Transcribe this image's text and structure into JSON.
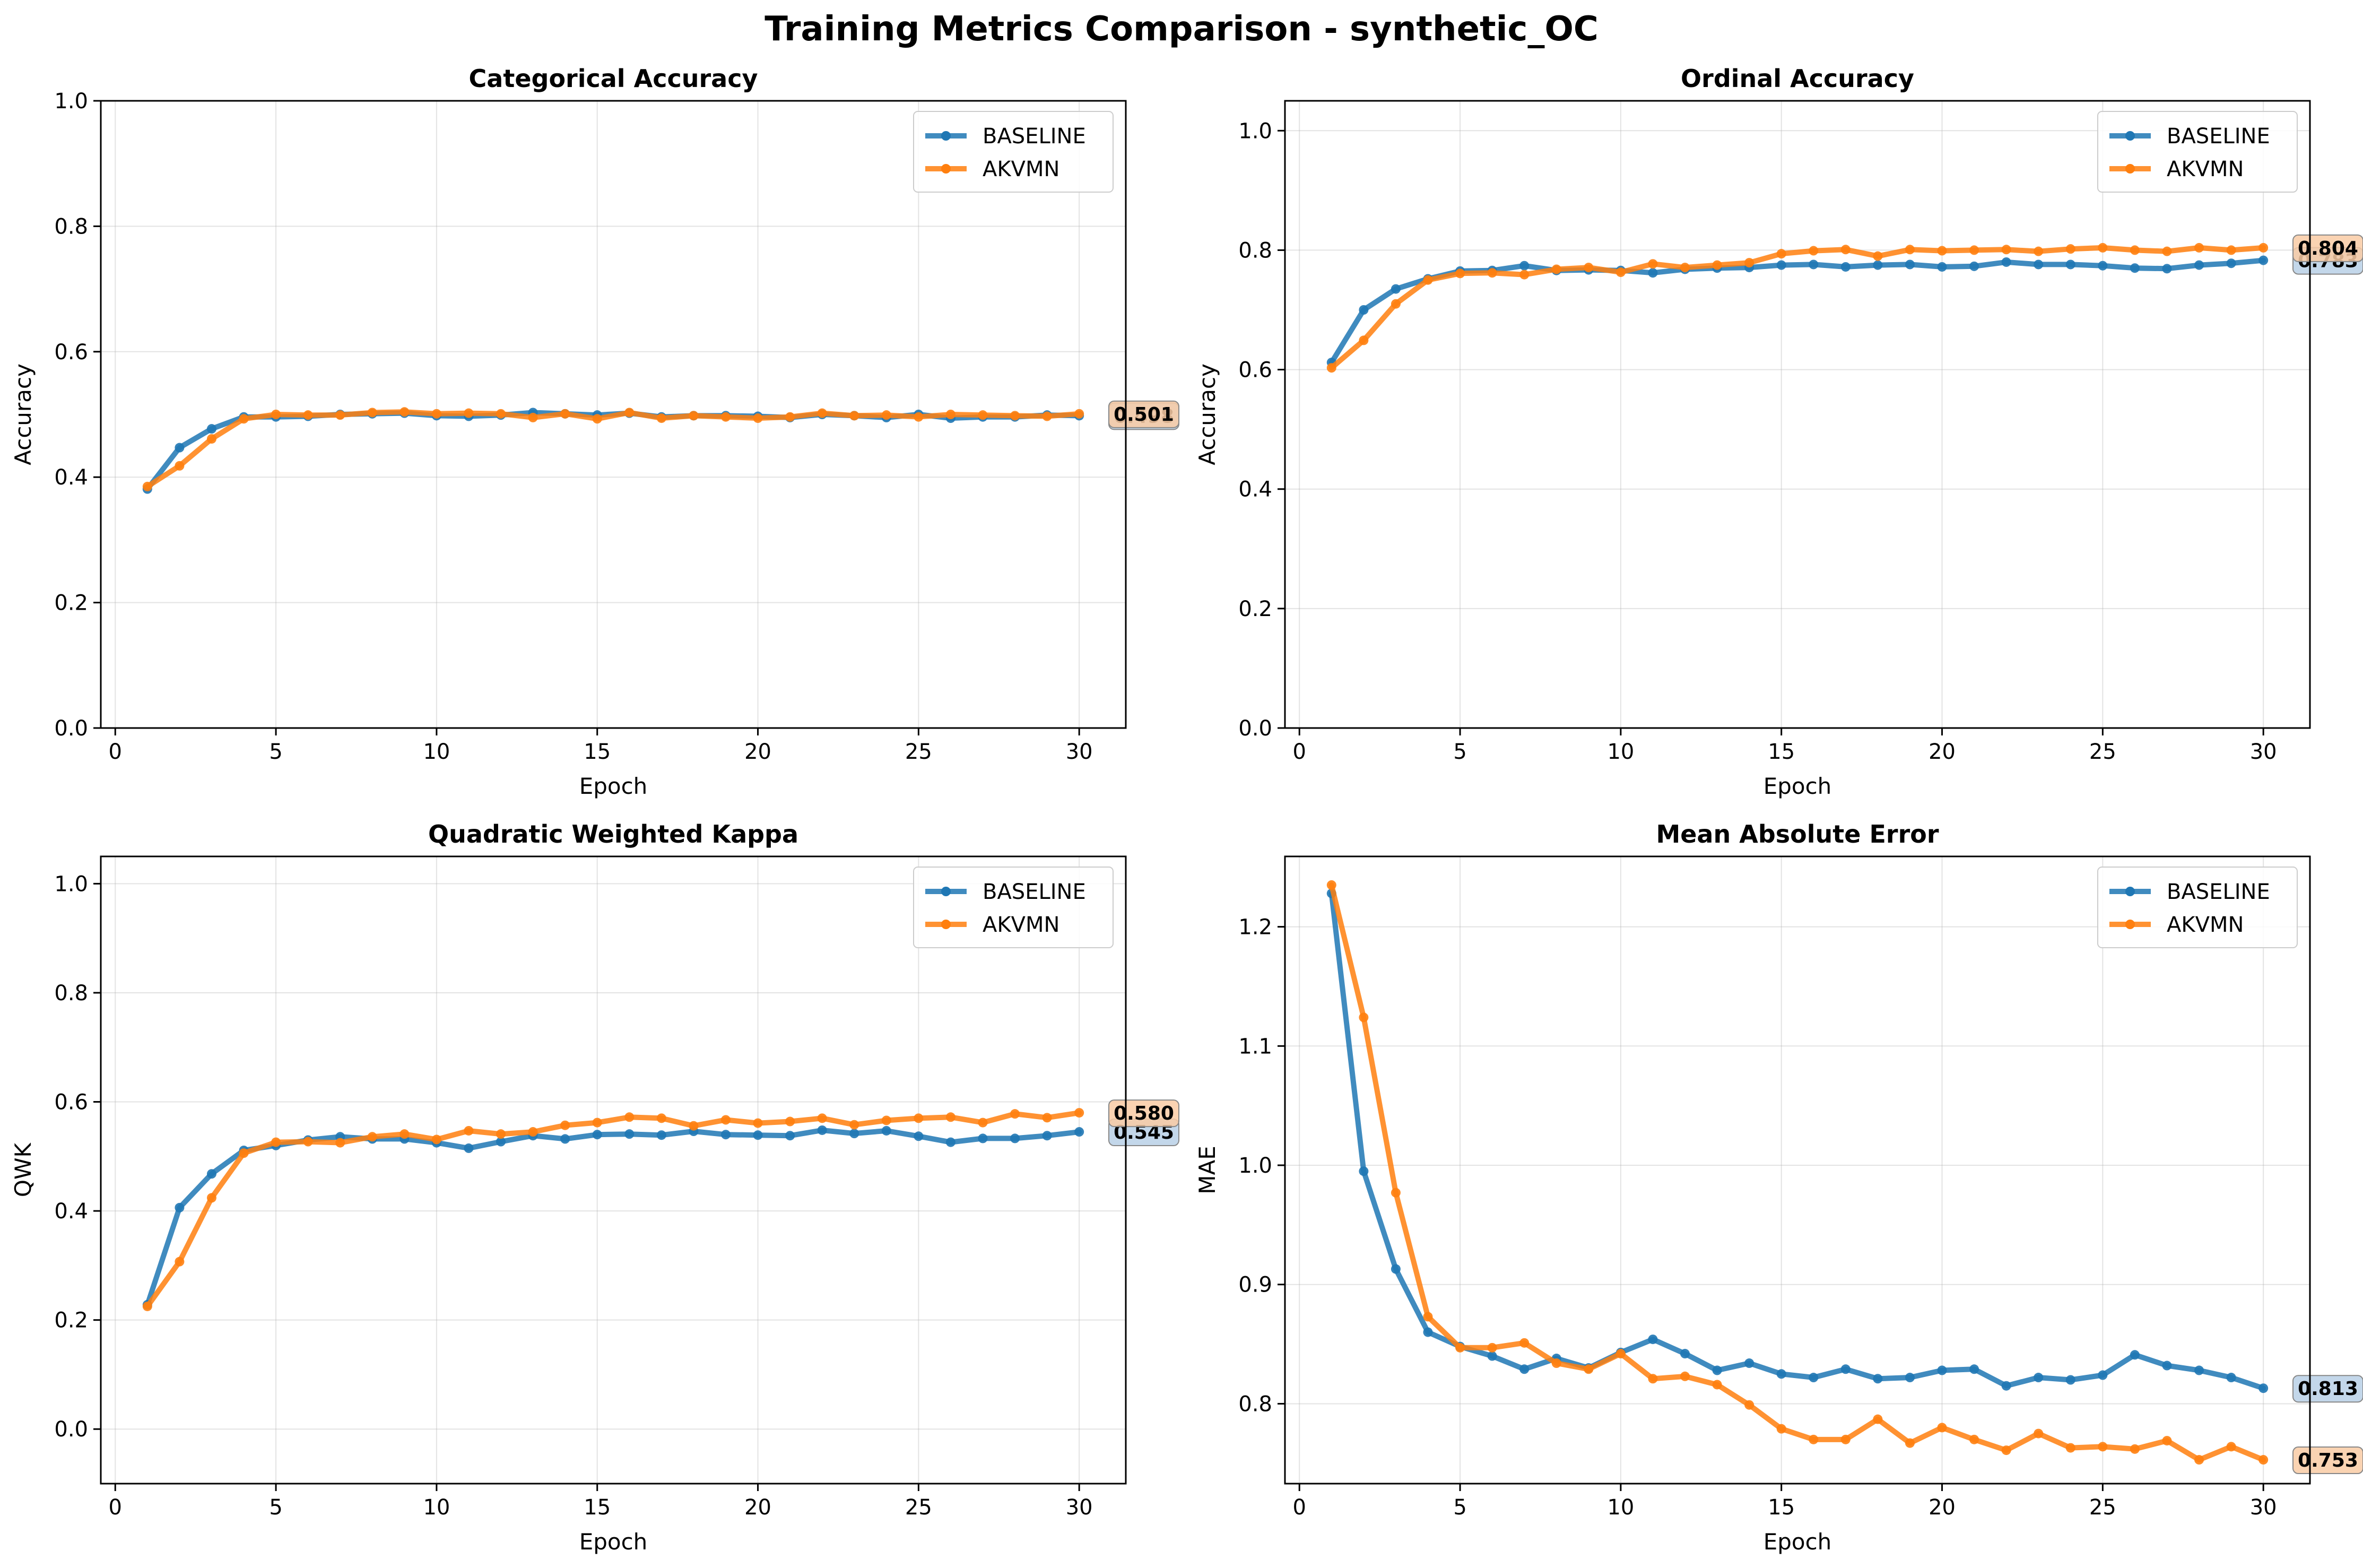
{
  "figure": {
    "title": "Training Metrics Comparison - synthetic_OC"
  },
  "colors": {
    "baseline": "#1f77b4",
    "akvmn": "#ff7f0e",
    "grid": "#b0b0b0",
    "axis": "#000000"
  },
  "chart_data": [
    {
      "type": "line",
      "title": "Categorical Accuracy",
      "xlabel": "Epoch",
      "ylabel": "Accuracy",
      "xlim": [
        -0.45,
        31.45
      ],
      "ylim": [
        0.0,
        1.0
      ],
      "xticks": [
        0,
        5,
        10,
        15,
        20,
        25,
        30
      ],
      "yticks": [
        0.0,
        0.2,
        0.4,
        0.6,
        0.8,
        1.0
      ],
      "ytick_labels": [
        "0.0",
        "0.2",
        "0.4",
        "0.6",
        "0.8",
        "1.0"
      ],
      "grid": true,
      "legend": "upper right",
      "x": [
        1,
        2,
        3,
        4,
        5,
        6,
        7,
        8,
        9,
        10,
        11,
        12,
        13,
        14,
        15,
        16,
        17,
        18,
        19,
        20,
        21,
        22,
        23,
        24,
        25,
        26,
        27,
        28,
        29,
        30
      ],
      "series": [
        {
          "name": "BASELINE",
          "color": "#1f77b4",
          "values": [
            0.381,
            0.447,
            0.477,
            0.496,
            0.496,
            0.497,
            0.5,
            0.501,
            0.502,
            0.498,
            0.497,
            0.499,
            0.503,
            0.501,
            0.499,
            0.502,
            0.496,
            0.498,
            0.498,
            0.497,
            0.495,
            0.5,
            0.498,
            0.495,
            0.5,
            0.494,
            0.496,
            0.496,
            0.499,
            0.498
          ]
        },
        {
          "name": "AKVMN",
          "color": "#ff7f0e",
          "values": [
            0.385,
            0.418,
            0.461,
            0.493,
            0.5,
            0.499,
            0.499,
            0.503,
            0.504,
            0.501,
            0.502,
            0.501,
            0.495,
            0.501,
            0.493,
            0.503,
            0.494,
            0.498,
            0.496,
            0.494,
            0.496,
            0.502,
            0.498,
            0.499,
            0.496,
            0.5,
            0.499,
            0.498,
            0.497,
            0.501
          ]
        }
      ],
      "end_labels": [
        {
          "text": "0.498",
          "series": "BASELINE",
          "value": 0.498
        },
        {
          "text": "0.501",
          "series": "AKVMN",
          "value": 0.501
        }
      ]
    },
    {
      "type": "line",
      "title": "Ordinal Accuracy",
      "xlabel": "Epoch",
      "ylabel": "Accuracy",
      "xlim": [
        -0.45,
        31.45
      ],
      "ylim": [
        0.0,
        1.05
      ],
      "xticks": [
        0,
        5,
        10,
        15,
        20,
        25,
        30
      ],
      "yticks": [
        0.0,
        0.2,
        0.4,
        0.6,
        0.8,
        1.0
      ],
      "ytick_labels": [
        "0.0",
        "0.2",
        "0.4",
        "0.6",
        "0.8",
        "1.0"
      ],
      "grid": true,
      "legend": "upper right",
      "x": [
        1,
        2,
        3,
        4,
        5,
        6,
        7,
        8,
        9,
        10,
        11,
        12,
        13,
        14,
        15,
        16,
        17,
        18,
        19,
        20,
        21,
        22,
        23,
        24,
        25,
        26,
        27,
        28,
        29,
        30
      ],
      "series": [
        {
          "name": "BASELINE",
          "color": "#1f77b4",
          "values": [
            0.612,
            0.7,
            0.735,
            0.752,
            0.765,
            0.766,
            0.774,
            0.766,
            0.767,
            0.766,
            0.762,
            0.768,
            0.77,
            0.771,
            0.775,
            0.776,
            0.772,
            0.775,
            0.776,
            0.772,
            0.773,
            0.78,
            0.776,
            0.776,
            0.774,
            0.77,
            0.769,
            0.775,
            0.778,
            0.783
          ]
        },
        {
          "name": "AKVMN",
          "color": "#ff7f0e",
          "values": [
            0.603,
            0.649,
            0.71,
            0.75,
            0.761,
            0.762,
            0.759,
            0.768,
            0.771,
            0.763,
            0.777,
            0.771,
            0.775,
            0.779,
            0.794,
            0.799,
            0.801,
            0.79,
            0.801,
            0.799,
            0.8,
            0.801,
            0.798,
            0.802,
            0.804,
            0.8,
            0.798,
            0.804,
            0.8,
            0.804
          ]
        }
      ],
      "end_labels": [
        {
          "text": "0.783",
          "series": "BASELINE",
          "value": 0.783
        },
        {
          "text": "0.804",
          "series": "AKVMN",
          "value": 0.804
        }
      ]
    },
    {
      "type": "line",
      "title": "Quadratic Weighted Kappa",
      "xlabel": "Epoch",
      "ylabel": "QWK",
      "xlim": [
        -0.45,
        31.45
      ],
      "ylim": [
        -0.1,
        1.05
      ],
      "xticks": [
        0,
        5,
        10,
        15,
        20,
        25,
        30
      ],
      "yticks": [
        0.0,
        0.2,
        0.4,
        0.6,
        0.8,
        1.0
      ],
      "ytick_labels": [
        "0.0",
        "0.2",
        "0.4",
        "0.6",
        "0.8",
        "1.0"
      ],
      "grid": true,
      "legend": "upper right",
      "x": [
        1,
        2,
        3,
        4,
        5,
        6,
        7,
        8,
        9,
        10,
        11,
        12,
        13,
        14,
        15,
        16,
        17,
        18,
        19,
        20,
        21,
        22,
        23,
        24,
        25,
        26,
        27,
        28,
        29,
        30
      ],
      "series": [
        {
          "name": "BASELINE",
          "color": "#1f77b4",
          "values": [
            0.228,
            0.406,
            0.468,
            0.511,
            0.52,
            0.53,
            0.536,
            0.532,
            0.532,
            0.525,
            0.515,
            0.527,
            0.538,
            0.532,
            0.54,
            0.541,
            0.539,
            0.546,
            0.54,
            0.539,
            0.538,
            0.548,
            0.542,
            0.547,
            0.537,
            0.526,
            0.533,
            0.533,
            0.538,
            0.545
          ]
        },
        {
          "name": "AKVMN",
          "color": "#ff7f0e",
          "values": [
            0.225,
            0.307,
            0.424,
            0.506,
            0.526,
            0.527,
            0.525,
            0.536,
            0.541,
            0.531,
            0.547,
            0.541,
            0.545,
            0.557,
            0.562,
            0.572,
            0.57,
            0.556,
            0.567,
            0.561,
            0.564,
            0.57,
            0.558,
            0.566,
            0.57,
            0.572,
            0.562,
            0.578,
            0.571,
            0.58
          ]
        }
      ],
      "end_labels": [
        {
          "text": "0.545",
          "series": "BASELINE",
          "value": 0.545
        },
        {
          "text": "0.580",
          "series": "AKVMN",
          "value": 0.58
        }
      ]
    },
    {
      "type": "line",
      "title": "Mean Absolute Error",
      "xlabel": "Epoch",
      "ylabel": "MAE",
      "xlim": [
        -0.45,
        31.45
      ],
      "ylim": [
        0.733,
        1.259
      ],
      "xticks": [
        0,
        5,
        10,
        15,
        20,
        25,
        30
      ],
      "yticks": [
        0.8,
        0.9,
        1.0,
        1.1,
        1.2
      ],
      "ytick_labels": [
        "0.8",
        "0.9",
        "1.0",
        "1.1",
        "1.2"
      ],
      "grid": true,
      "legend": "upper right",
      "x": [
        1,
        2,
        3,
        4,
        5,
        6,
        7,
        8,
        9,
        10,
        11,
        12,
        13,
        14,
        15,
        16,
        17,
        18,
        19,
        20,
        21,
        22,
        23,
        24,
        25,
        26,
        27,
        28,
        29,
        30
      ],
      "series": [
        {
          "name": "BASELINE",
          "color": "#1f77b4",
          "values": [
            1.228,
            0.995,
            0.913,
            0.86,
            0.848,
            0.84,
            0.829,
            0.838,
            0.83,
            0.843,
            0.854,
            0.842,
            0.828,
            0.834,
            0.825,
            0.822,
            0.829,
            0.821,
            0.822,
            0.828,
            0.829,
            0.815,
            0.822,
            0.82,
            0.824,
            0.841,
            0.832,
            0.828,
            0.822,
            0.813
          ]
        },
        {
          "name": "AKVMN",
          "color": "#ff7f0e",
          "values": [
            1.235,
            1.124,
            0.977,
            0.873,
            0.847,
            0.847,
            0.851,
            0.834,
            0.829,
            0.842,
            0.821,
            0.823,
            0.816,
            0.799,
            0.779,
            0.77,
            0.77,
            0.787,
            0.767,
            0.78,
            0.77,
            0.761,
            0.775,
            0.763,
            0.764,
            0.762,
            0.769,
            0.753,
            0.764,
            0.753
          ]
        }
      ],
      "end_labels": [
        {
          "text": "0.813",
          "series": "BASELINE",
          "value": 0.813
        },
        {
          "text": "0.753",
          "series": "AKVMN",
          "value": 0.753
        }
      ]
    }
  ]
}
